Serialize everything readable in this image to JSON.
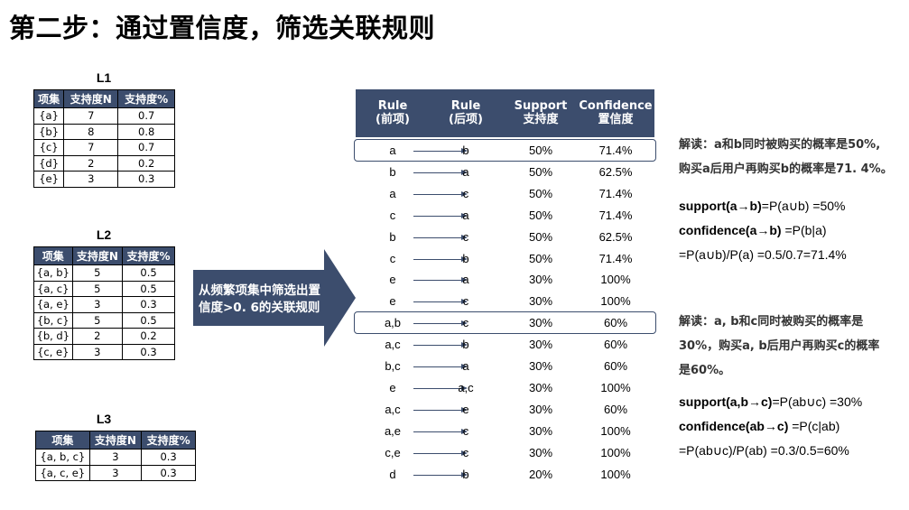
{
  "title": "第二步：通过置信度，筛选关联规则",
  "tables": {
    "l1": {
      "title": "L1",
      "headers": [
        "项集",
        "支持度N",
        "支持度%"
      ],
      "rows": [
        [
          "{a}",
          "7",
          "0.7"
        ],
        [
          "{b}",
          "8",
          "0.8"
        ],
        [
          "{c}",
          "7",
          "0.7"
        ],
        [
          "{d}",
          "2",
          "0.2"
        ],
        [
          "{e}",
          "3",
          "0.3"
        ]
      ]
    },
    "l2": {
      "title": "L2",
      "headers": [
        "项集",
        "支持度N",
        "支持度%"
      ],
      "rows": [
        [
          "{a, b}",
          "5",
          "0.5"
        ],
        [
          "{a, c}",
          "5",
          "0.5"
        ],
        [
          "{a, e}",
          "3",
          "0.3"
        ],
        [
          "{b, c}",
          "5",
          "0.5"
        ],
        [
          "{b, d}",
          "2",
          "0.2"
        ],
        [
          "{c, e}",
          "3",
          "0.3"
        ]
      ]
    },
    "l3": {
      "title": "L3",
      "headers": [
        "项集",
        "支持度N",
        "支持度%"
      ],
      "rows": [
        [
          "{a, b, c}",
          "3",
          "0.3"
        ],
        [
          "{a, c, e}",
          "3",
          "0.3"
        ]
      ]
    }
  },
  "arrow_text_1": "从频繁项集中筛选出置",
  "arrow_text_2": "信度>0. 6的关联规则",
  "rules_header": {
    "rule_ante_1": "Rule",
    "rule_ante_2": "(前项)",
    "rule_cons_1": "Rule",
    "rule_cons_2": "(后项)",
    "support_1": "Support",
    "support_2": "支持度",
    "confidence_1": "Confidence",
    "confidence_2": "置信度"
  },
  "rules": [
    {
      "ante": "a",
      "cons": "b",
      "support": "50%",
      "confidence": "71.4%",
      "boxed": true
    },
    {
      "ante": "b",
      "cons": "a",
      "support": "50%",
      "confidence": "62.5%",
      "boxed": false
    },
    {
      "ante": "a",
      "cons": "c",
      "support": "50%",
      "confidence": "71.4%",
      "boxed": false
    },
    {
      "ante": "c",
      "cons": "a",
      "support": "50%",
      "confidence": "71.4%",
      "boxed": false
    },
    {
      "ante": "b",
      "cons": "c",
      "support": "50%",
      "confidence": "62.5%",
      "boxed": false
    },
    {
      "ante": "c",
      "cons": "b",
      "support": "50%",
      "confidence": "71.4%",
      "boxed": false
    },
    {
      "ante": "e",
      "cons": "a",
      "support": "30%",
      "confidence": "100%",
      "boxed": false
    },
    {
      "ante": "e",
      "cons": "c",
      "support": "30%",
      "confidence": "100%",
      "boxed": false
    },
    {
      "ante": "a,b",
      "cons": "c",
      "support": "30%",
      "confidence": "60%",
      "boxed": true
    },
    {
      "ante": "a,c",
      "cons": "b",
      "support": "30%",
      "confidence": "60%",
      "boxed": false
    },
    {
      "ante": "b,c",
      "cons": "a",
      "support": "30%",
      "confidence": "60%",
      "boxed": false
    },
    {
      "ante": "e",
      "cons": "a,c",
      "support": "30%",
      "confidence": "100%",
      "boxed": false
    },
    {
      "ante": "a,c",
      "cons": "e",
      "support": "30%",
      "confidence": "60%",
      "boxed": false
    },
    {
      "ante": "a,e",
      "cons": "c",
      "support": "30%",
      "confidence": "100%",
      "boxed": false
    },
    {
      "ante": "c,e",
      "cons": "c",
      "support": "30%",
      "confidence": "100%",
      "boxed": false
    },
    {
      "ante": "d",
      "cons": "b",
      "support": "20%",
      "confidence": "100%",
      "boxed": false
    }
  ],
  "explain1": {
    "line1": "解读：a和b同时被购买的概率是50%,",
    "line2": "购买a后用户再购买b的概率是71. 4%。",
    "f1_bold": "support(a→b)",
    "f1_rest": "=P(a∪b)   =50%",
    "f2_bold": "confidence(a→b)",
    "f2_rest": "   =P(b|a)",
    "f3": "=P(a∪b)/P(a) =0.5/0.7=71.4%"
  },
  "explain2": {
    "line1": "解读：a, b和c同时被购买的概率是",
    "line2": "30%，购买a, b后用户再购买c的概率",
    "line3": "是60%。",
    "f1_bold": "support(a,b→c)",
    "f1_rest": "=P(ab∪c)   =30%",
    "f2_bold": "confidence(ab→c)",
    "f2_rest": "   =P(c|ab)",
    "f3": "=P(ab∪c)/P(ab) =0.3/0.5=60%"
  },
  "colors": {
    "header_bg": "#3c4d6d",
    "arrow_fill": "#3c4d6d"
  }
}
